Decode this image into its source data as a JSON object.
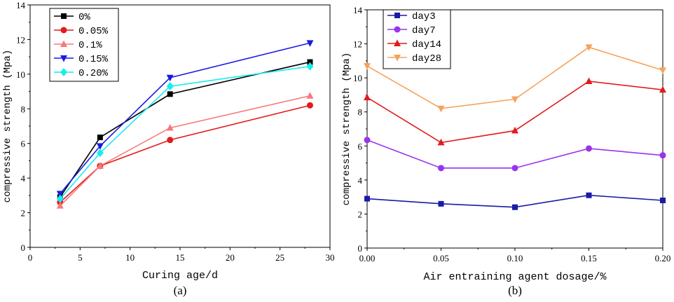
{
  "chart_data": [
    {
      "type": "line",
      "panel_label": "(a)",
      "xlabel": "Curing age/d",
      "ylabel": "compressive strength (Mpa)",
      "xlim": [
        0,
        30
      ],
      "ylim": [
        0,
        14
      ],
      "xticks": [
        "0",
        "5",
        "10",
        "15",
        "20",
        "25",
        "30"
      ],
      "yticks": [
        "0",
        "2",
        "4",
        "6",
        "8",
        "10",
        "12",
        "14"
      ],
      "legend_position": "top-left",
      "x": [
        3,
        7,
        14,
        28
      ],
      "series": [
        {
          "name": "0%",
          "color": "#000000",
          "marker": "square",
          "values": [
            2.9,
            6.35,
            8.85,
            10.7
          ]
        },
        {
          "name": "0.05%",
          "color": "#e31a1c",
          "marker": "circle",
          "values": [
            2.6,
            4.7,
            6.2,
            8.2
          ]
        },
        {
          "name": "0.1%",
          "color": "#f87878",
          "marker": "triangle-up",
          "values": [
            2.4,
            4.7,
            6.9,
            8.75
          ]
        },
        {
          "name": "0.15%",
          "color": "#1a1ae6",
          "marker": "triangle-down",
          "values": [
            3.1,
            5.85,
            9.8,
            11.8
          ]
        },
        {
          "name": "0.20%",
          "color": "#19ecec",
          "marker": "diamond",
          "values": [
            2.8,
            5.45,
            9.3,
            10.45
          ]
        }
      ]
    },
    {
      "type": "line",
      "panel_label": "(b)",
      "xlabel": "Air entraining agent dosage/%",
      "ylabel": "compressive strength (Mpa)",
      "xlim": [
        0,
        0.2
      ],
      "ylim": [
        0,
        14
      ],
      "xticks": [
        "0.00",
        "0.05",
        "0.10",
        "0.15",
        "0.20"
      ],
      "yticks": [
        "0",
        "2",
        "4",
        "6",
        "8",
        "10",
        "12",
        "14"
      ],
      "legend_position": "top-left",
      "x": [
        0,
        0.05,
        0.1,
        0.15,
        0.2
      ],
      "series": [
        {
          "name": "day3",
          "color": "#1a1aa6",
          "marker": "square",
          "values": [
            2.9,
            2.6,
            2.4,
            3.1,
            2.8
          ]
        },
        {
          "name": "day7",
          "color": "#9933ee",
          "marker": "circle",
          "values": [
            6.35,
            4.7,
            4.7,
            5.85,
            5.45
          ]
        },
        {
          "name": "day14",
          "color": "#e31a1c",
          "marker": "triangle-up",
          "values": [
            8.85,
            6.2,
            6.9,
            9.8,
            9.3
          ]
        },
        {
          "name": "day28",
          "color": "#f5a35a",
          "marker": "triangle-down",
          "values": [
            10.7,
            8.2,
            8.75,
            11.8,
            10.45
          ]
        }
      ]
    }
  ]
}
